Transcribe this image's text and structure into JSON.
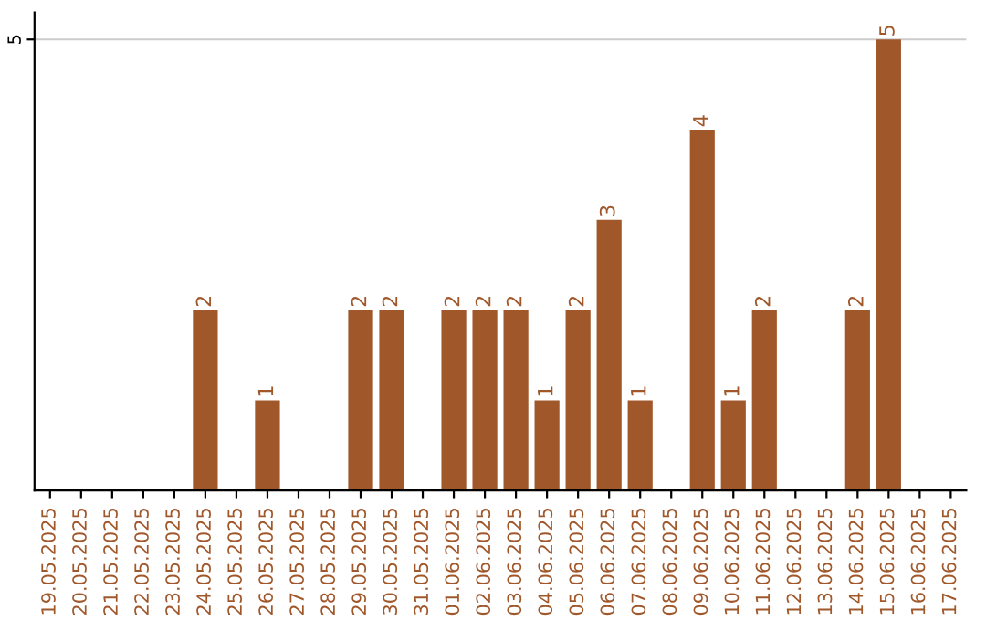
{
  "chart_data": {
    "type": "bar",
    "categories": [
      "19.05.2025",
      "20.05.2025",
      "21.05.2025",
      "22.05.2025",
      "23.05.2025",
      "24.05.2025",
      "25.05.2025",
      "26.05.2025",
      "27.05.2025",
      "28.05.2025",
      "29.05.2025",
      "30.05.2025",
      "31.05.2025",
      "01.06.2025",
      "02.06.2025",
      "03.06.2025",
      "04.06.2025",
      "05.06.2025",
      "06.06.2025",
      "07.06.2025",
      "08.06.2025",
      "09.06.2025",
      "10.06.2025",
      "11.06.2025",
      "12.06.2025",
      "13.06.2025",
      "14.06.2025",
      "15.06.2025",
      "16.06.2025",
      "17.06.2025"
    ],
    "values": [
      0,
      0,
      0,
      0,
      0,
      2,
      0,
      1,
      0,
      0,
      2,
      2,
      0,
      2,
      2,
      2,
      1,
      2,
      3,
      1,
      0,
      4,
      1,
      2,
      0,
      0,
      2,
      5,
      0,
      0
    ],
    "value_labels": [
      null,
      null,
      null,
      null,
      null,
      "2",
      null,
      "1",
      null,
      null,
      "2",
      "2",
      null,
      "2",
      "2",
      "2",
      "1",
      "2",
      "3",
      "1",
      null,
      "4",
      "1",
      "2",
      null,
      null,
      "2",
      "5",
      null,
      null
    ],
    "color": "#a0572a",
    "ylim": [
      0,
      5.3
    ],
    "yticks": [
      5
    ],
    "grid": "y"
  }
}
